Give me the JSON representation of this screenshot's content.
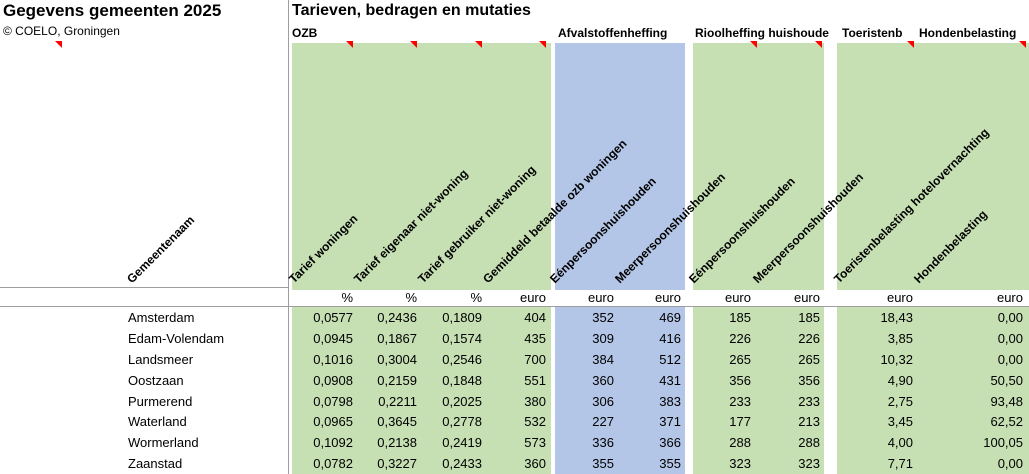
{
  "titles": {
    "left": "Gegevens gemeenten 2025",
    "copyright": "© COELO, Groningen",
    "main": "Tarieven, bedragen en mutaties"
  },
  "groups": [
    {
      "label": "OZB"
    },
    {
      "label": "Afvalstoffenheffing"
    },
    {
      "label": "Rioolheffing huishoude"
    },
    {
      "label": "Toeristenb"
    },
    {
      "label": "Hondenbelasting"
    }
  ],
  "columns": [
    {
      "header": "Gemeentenaam",
      "unit": ""
    },
    {
      "header": "Tarief woningen",
      "unit": "%"
    },
    {
      "header": "Tarief eigenaar niet-woning",
      "unit": "%"
    },
    {
      "header": "Tarief gebruiker niet-woning",
      "unit": "%"
    },
    {
      "header": "Gemiddeld betaalde ozb woningen",
      "unit": "euro"
    },
    {
      "header": "Eénpersoonshuishouden",
      "unit": "euro"
    },
    {
      "header": "Meerpersoonshuishouden",
      "unit": "euro"
    },
    {
      "header": "Eénpersoonshuishouden",
      "unit": "euro"
    },
    {
      "header": "Meerpersoonshuishouden",
      "unit": "euro"
    },
    {
      "header": "Toeristenbelasting hotelovernachting",
      "unit": "euro"
    },
    {
      "header": "Hondenbelasting",
      "unit": "euro"
    }
  ],
  "rows": [
    {
      "name": "Amsterdam",
      "values": [
        "0,0577",
        "0,2436",
        "0,1809",
        "404",
        "352",
        "469",
        "185",
        "185",
        "18,43",
        "0,00"
      ]
    },
    {
      "name": "Edam-Volendam",
      "values": [
        "0,0945",
        "0,1867",
        "0,1574",
        "435",
        "309",
        "416",
        "226",
        "226",
        "3,85",
        "0,00"
      ]
    },
    {
      "name": "Landsmeer",
      "values": [
        "0,1016",
        "0,3004",
        "0,2546",
        "700",
        "384",
        "512",
        "265",
        "265",
        "10,32",
        "0,00"
      ]
    },
    {
      "name": "Oostzaan",
      "values": [
        "0,0908",
        "0,2159",
        "0,1848",
        "551",
        "360",
        "431",
        "356",
        "356",
        "4,90",
        "50,50"
      ]
    },
    {
      "name": "Purmerend",
      "values": [
        "0,0798",
        "0,2211",
        "0,2025",
        "380",
        "306",
        "383",
        "233",
        "233",
        "2,75",
        "93,48"
      ]
    },
    {
      "name": "Waterland",
      "values": [
        "0,0965",
        "0,3645",
        "0,2778",
        "532",
        "227",
        "371",
        "177",
        "213",
        "3,45",
        "62,52"
      ]
    },
    {
      "name": "Wormerland",
      "values": [
        "0,1092",
        "0,2138",
        "0,2419",
        "573",
        "336",
        "366",
        "288",
        "288",
        "4,00",
        "100,05"
      ]
    },
    {
      "name": "Zaanstad",
      "values": [
        "0,0782",
        "0,3227",
        "0,2433",
        "360",
        "355",
        "355",
        "323",
        "323",
        "7,71",
        "0,00"
      ]
    }
  ],
  "colors": {
    "section_green": "#c6e0b4",
    "section_blue": "#b4c6e7",
    "gridline": "#9e9e9e",
    "comment_indicator": "#ff0000"
  }
}
